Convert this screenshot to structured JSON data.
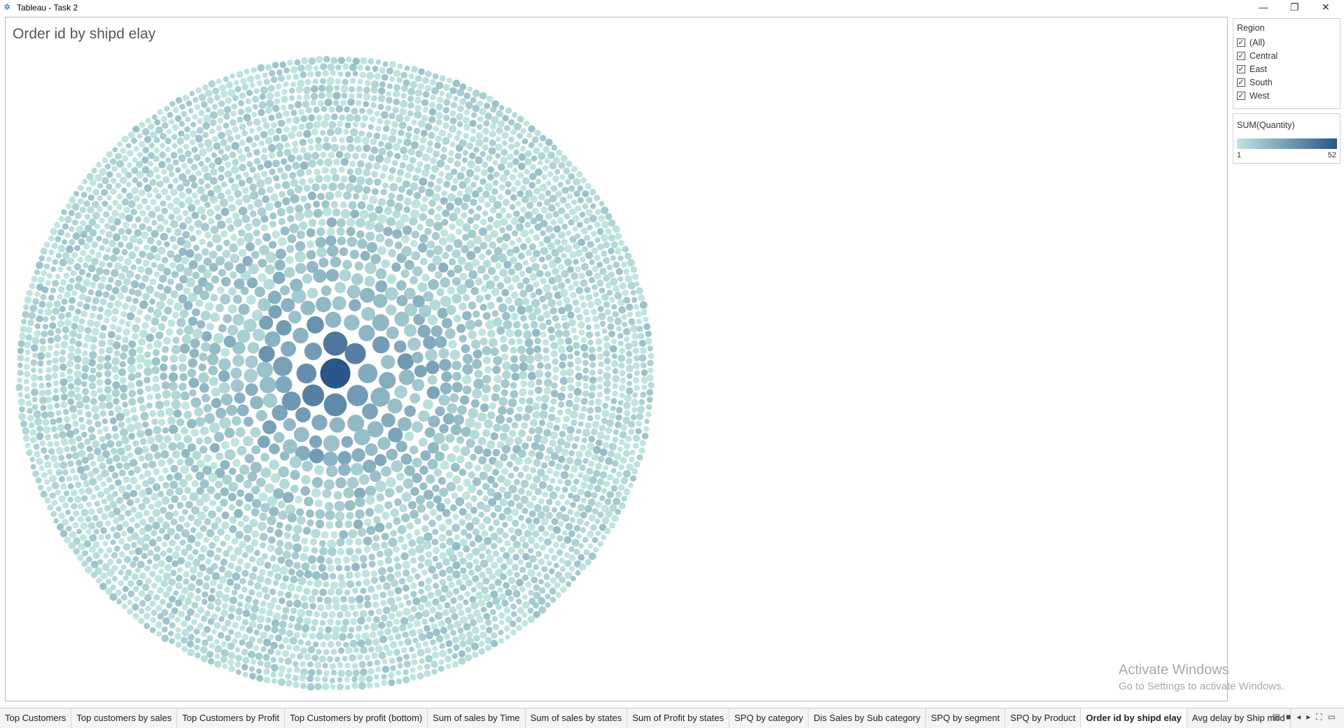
{
  "window": {
    "title": "Tableau - Task 2"
  },
  "sheet": {
    "title": "Order id by shipd elay"
  },
  "filter": {
    "title": "Region",
    "options": [
      "(All)",
      "Central",
      "East",
      "South",
      "West"
    ]
  },
  "legend": {
    "title": "SUM(Quantity)",
    "min": 1,
    "max": 52,
    "colors": [
      "#bfe5df",
      "#2a568a"
    ]
  },
  "tabs": [
    "Top Customers",
    "Top customers by sales",
    "Top Customers by Profit",
    "Top Customers by profit (bottom)",
    "Sum of sales by Time",
    "Sum of sales by states",
    "Sum of Profit by states",
    "SPQ by category",
    "Dis Sales by Sub category",
    "SPQ by segment",
    "SPQ by Product",
    "Order id by shipd elay",
    "Avg delay by Ship mod"
  ],
  "active_tab": "Order id by shipd elay",
  "watermark": {
    "line1": "Activate Windows",
    "line2": "Go to Settings to activate Windows."
  }
}
